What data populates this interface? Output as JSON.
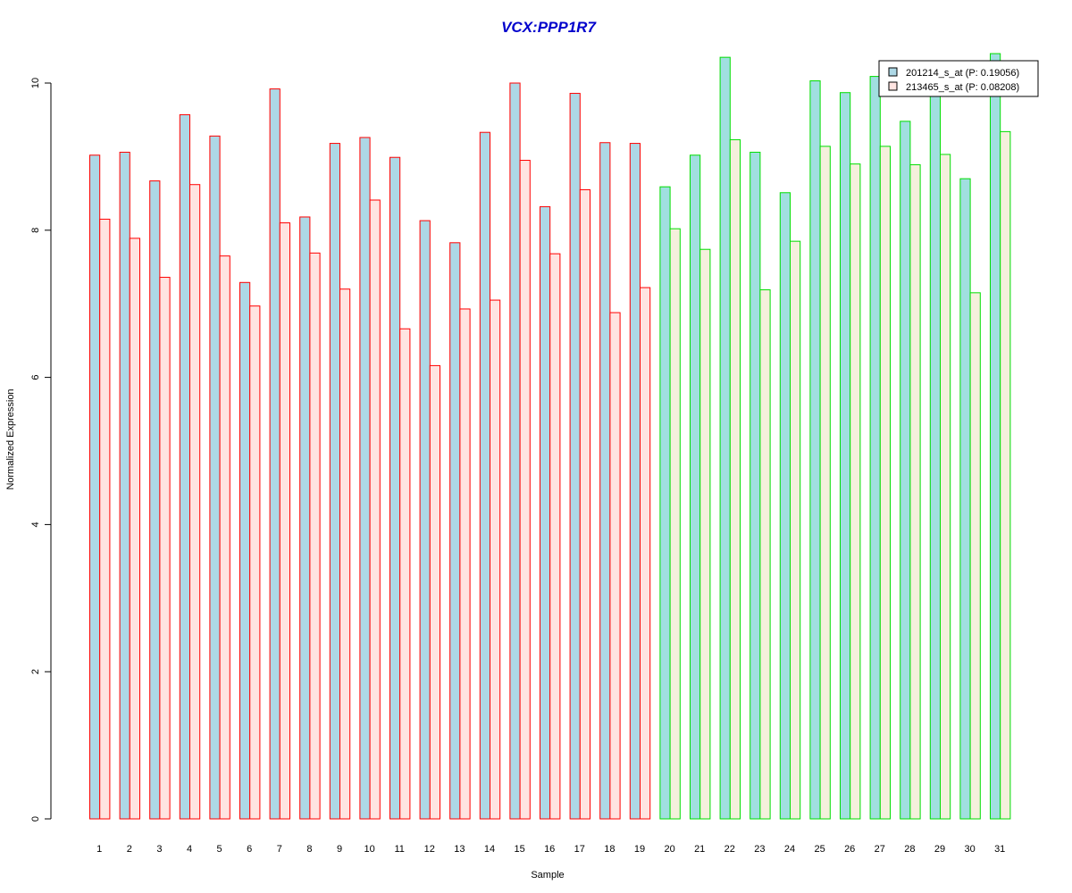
{
  "colors": {
    "title": "#0000cc",
    "series1_fill": "#add8e6",
    "series2_fill_group1": "#ffe4e1",
    "series2_fill_group2": "#f5f0dc",
    "series1_fill_group2": "#a0dfe0",
    "border_group1": "#ff0000",
    "border_group2": "#00dd00"
  },
  "chart_data": {
    "type": "bar",
    "title": "VCX:PPP1R7",
    "xlabel": "Sample",
    "ylabel": "Normalized Expression",
    "ylim": [
      0,
      10.4
    ],
    "yticks": [
      "0",
      "2",
      "4",
      "6",
      "8",
      "10"
    ],
    "grid": false,
    "legend_position": "top-right",
    "categories": [
      "1",
      "2",
      "3",
      "4",
      "5",
      "6",
      "7",
      "8",
      "9",
      "10",
      "11",
      "12",
      "13",
      "14",
      "15",
      "16",
      "17",
      "18",
      "19",
      "20",
      "21",
      "22",
      "23",
      "24",
      "25",
      "26",
      "27",
      "28",
      "29",
      "30",
      "31"
    ],
    "group_split_after": 19,
    "series": [
      {
        "name": "201214_s_at (P: 0.19056)",
        "values": [
          9.02,
          9.06,
          8.67,
          9.57,
          9.28,
          7.29,
          9.92,
          8.18,
          9.18,
          9.26,
          8.99,
          8.13,
          7.83,
          9.33,
          10.0,
          8.32,
          9.86,
          9.19,
          9.18,
          8.59,
          9.02,
          10.35,
          9.06,
          8.51,
          10.03,
          9.87,
          10.09,
          9.48,
          9.84,
          8.7,
          10.4
        ]
      },
      {
        "name": "213465_s_at (P: 0.08208)",
        "values": [
          8.15,
          7.89,
          7.36,
          8.62,
          7.65,
          6.97,
          8.1,
          7.69,
          7.2,
          8.41,
          6.66,
          6.16,
          6.93,
          7.05,
          8.95,
          7.68,
          8.55,
          6.88,
          7.22,
          8.02,
          7.74,
          9.23,
          7.19,
          7.85,
          9.14,
          8.9,
          9.14,
          8.89,
          9.03,
          7.15,
          9.34
        ]
      }
    ]
  }
}
